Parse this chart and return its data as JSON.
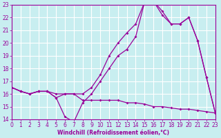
{
  "bg_color": "#c8eef0",
  "grid_color": "#ffffff",
  "line_color": "#990099",
  "xlabel": "Windchill (Refroidissement éolien,°C)",
  "xlim": [
    0,
    23
  ],
  "ylim": [
    14,
    23
  ],
  "xticks": [
    0,
    1,
    2,
    3,
    4,
    5,
    6,
    7,
    8,
    9,
    10,
    11,
    12,
    13,
    14,
    15,
    16,
    17,
    18,
    19,
    20,
    21,
    22,
    23
  ],
  "yticks": [
    14,
    15,
    16,
    17,
    18,
    19,
    20,
    21,
    22,
    23
  ],
  "line1_x": [
    0,
    1,
    2,
    3,
    4,
    5,
    6,
    7,
    8,
    9,
    10,
    11,
    12,
    13,
    14,
    15,
    16,
    17,
    18,
    19,
    20,
    21,
    22,
    23
  ],
  "line1_y": [
    16.5,
    16.2,
    16.0,
    16.2,
    16.2,
    15.7,
    14.2,
    13.8,
    15.3,
    16.0,
    17.0,
    18.0,
    19.0,
    19.5,
    20.5,
    23.2,
    23.3,
    22.2,
    21.5,
    21.5,
    22.0,
    20.2,
    17.3,
    14.5
  ],
  "line2_x": [
    0,
    1,
    2,
    3,
    4,
    5,
    6,
    7,
    8,
    9,
    10,
    11,
    12,
    13,
    14,
    15,
    16,
    17,
    18,
    19,
    20,
    21,
    22,
    23
  ],
  "line2_y": [
    16.5,
    16.2,
    16.0,
    16.2,
    16.2,
    16.0,
    16.0,
    16.0,
    16.0,
    16.5,
    17.5,
    19.0,
    20.0,
    20.8,
    21.5,
    23.2,
    23.3,
    22.5,
    21.5,
    21.5,
    22.0,
    20.2,
    17.3,
    14.5
  ],
  "line3_x": [
    0,
    1,
    2,
    3,
    4,
    5,
    6,
    7,
    8,
    9,
    10,
    11,
    12,
    13,
    14,
    15,
    16,
    17,
    18,
    19,
    20,
    21,
    22,
    23
  ],
  "line3_y": [
    16.5,
    16.2,
    16.0,
    16.2,
    16.2,
    15.7,
    16.0,
    16.0,
    15.5,
    15.5,
    15.5,
    15.5,
    15.5,
    15.3,
    15.3,
    15.2,
    15.0,
    15.0,
    14.9,
    14.8,
    14.8,
    14.7,
    14.6,
    14.5
  ]
}
